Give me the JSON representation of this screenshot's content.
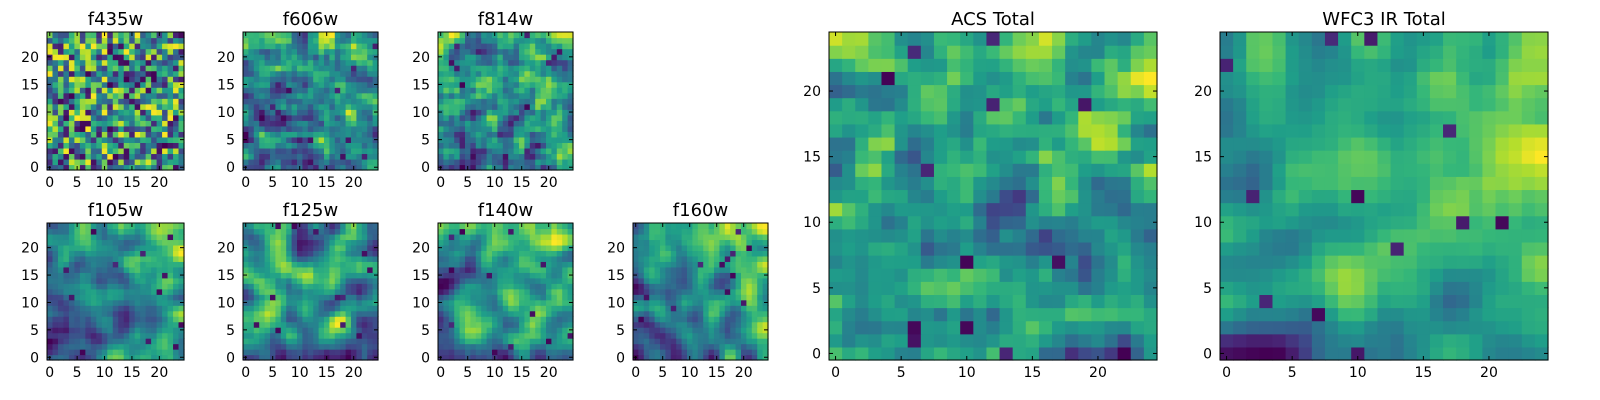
{
  "chart_data": [
    {
      "type": "heatmap",
      "title": "f435w",
      "size": 25,
      "xticks": [
        0,
        5,
        10,
        15,
        20
      ],
      "yticks": [
        0,
        5,
        10,
        15,
        20
      ],
      "seed": 11,
      "smooth": 0,
      "gradient": 0.0,
      "colormap": "viridis"
    },
    {
      "type": "heatmap",
      "title": "f606w",
      "size": 25,
      "xticks": [
        0,
        5,
        10,
        15,
        20
      ],
      "yticks": [
        0,
        5,
        10,
        15,
        20
      ],
      "seed": 23,
      "smooth": 1,
      "gradient": 0.3,
      "colormap": "viridis"
    },
    {
      "type": "heatmap",
      "title": "f814w",
      "size": 25,
      "xticks": [
        0,
        5,
        10,
        15,
        20
      ],
      "yticks": [
        0,
        5,
        10,
        15,
        20
      ],
      "seed": 37,
      "smooth": 1,
      "gradient": 0.35,
      "colormap": "viridis"
    },
    {
      "type": "heatmap",
      "title": "f105w",
      "size": 25,
      "xticks": [
        0,
        5,
        10,
        15,
        20
      ],
      "yticks": [
        0,
        5,
        10,
        15,
        20
      ],
      "seed": 41,
      "smooth": 2,
      "gradient": 0.3,
      "colormap": "viridis"
    },
    {
      "type": "heatmap",
      "title": "f125w",
      "size": 25,
      "xticks": [
        0,
        5,
        10,
        15,
        20
      ],
      "yticks": [
        0,
        5,
        10,
        15,
        20
      ],
      "seed": 53,
      "smooth": 2,
      "gradient": 0.2,
      "colormap": "viridis"
    },
    {
      "type": "heatmap",
      "title": "f140w",
      "size": 25,
      "xticks": [
        0,
        5,
        10,
        15,
        20
      ],
      "yticks": [
        0,
        5,
        10,
        15,
        20
      ],
      "seed": 67,
      "smooth": 2,
      "gradient": 0.25,
      "colormap": "viridis"
    },
    {
      "type": "heatmap",
      "title": "f160w",
      "size": 25,
      "xticks": [
        0,
        5,
        10,
        15,
        20
      ],
      "yticks": [
        0,
        5,
        10,
        15,
        20
      ],
      "seed": 79,
      "smooth": 2,
      "gradient": 0.3,
      "colormap": "viridis"
    },
    {
      "type": "heatmap",
      "title": "ACS Total",
      "size": 25,
      "xticks": [
        0,
        5,
        10,
        15,
        20
      ],
      "yticks": [
        0,
        5,
        10,
        15,
        20
      ],
      "seed": 83,
      "smooth": 1,
      "gradient": 0.3,
      "colormap": "viridis"
    },
    {
      "type": "heatmap",
      "title": "WFC3 IR Total",
      "size": 25,
      "xticks": [
        0,
        5,
        10,
        15,
        20
      ],
      "yticks": [
        0,
        5,
        10,
        15,
        20
      ],
      "seed": 97,
      "smooth": 2,
      "gradient": 0.35,
      "colormap": "viridis"
    }
  ]
}
